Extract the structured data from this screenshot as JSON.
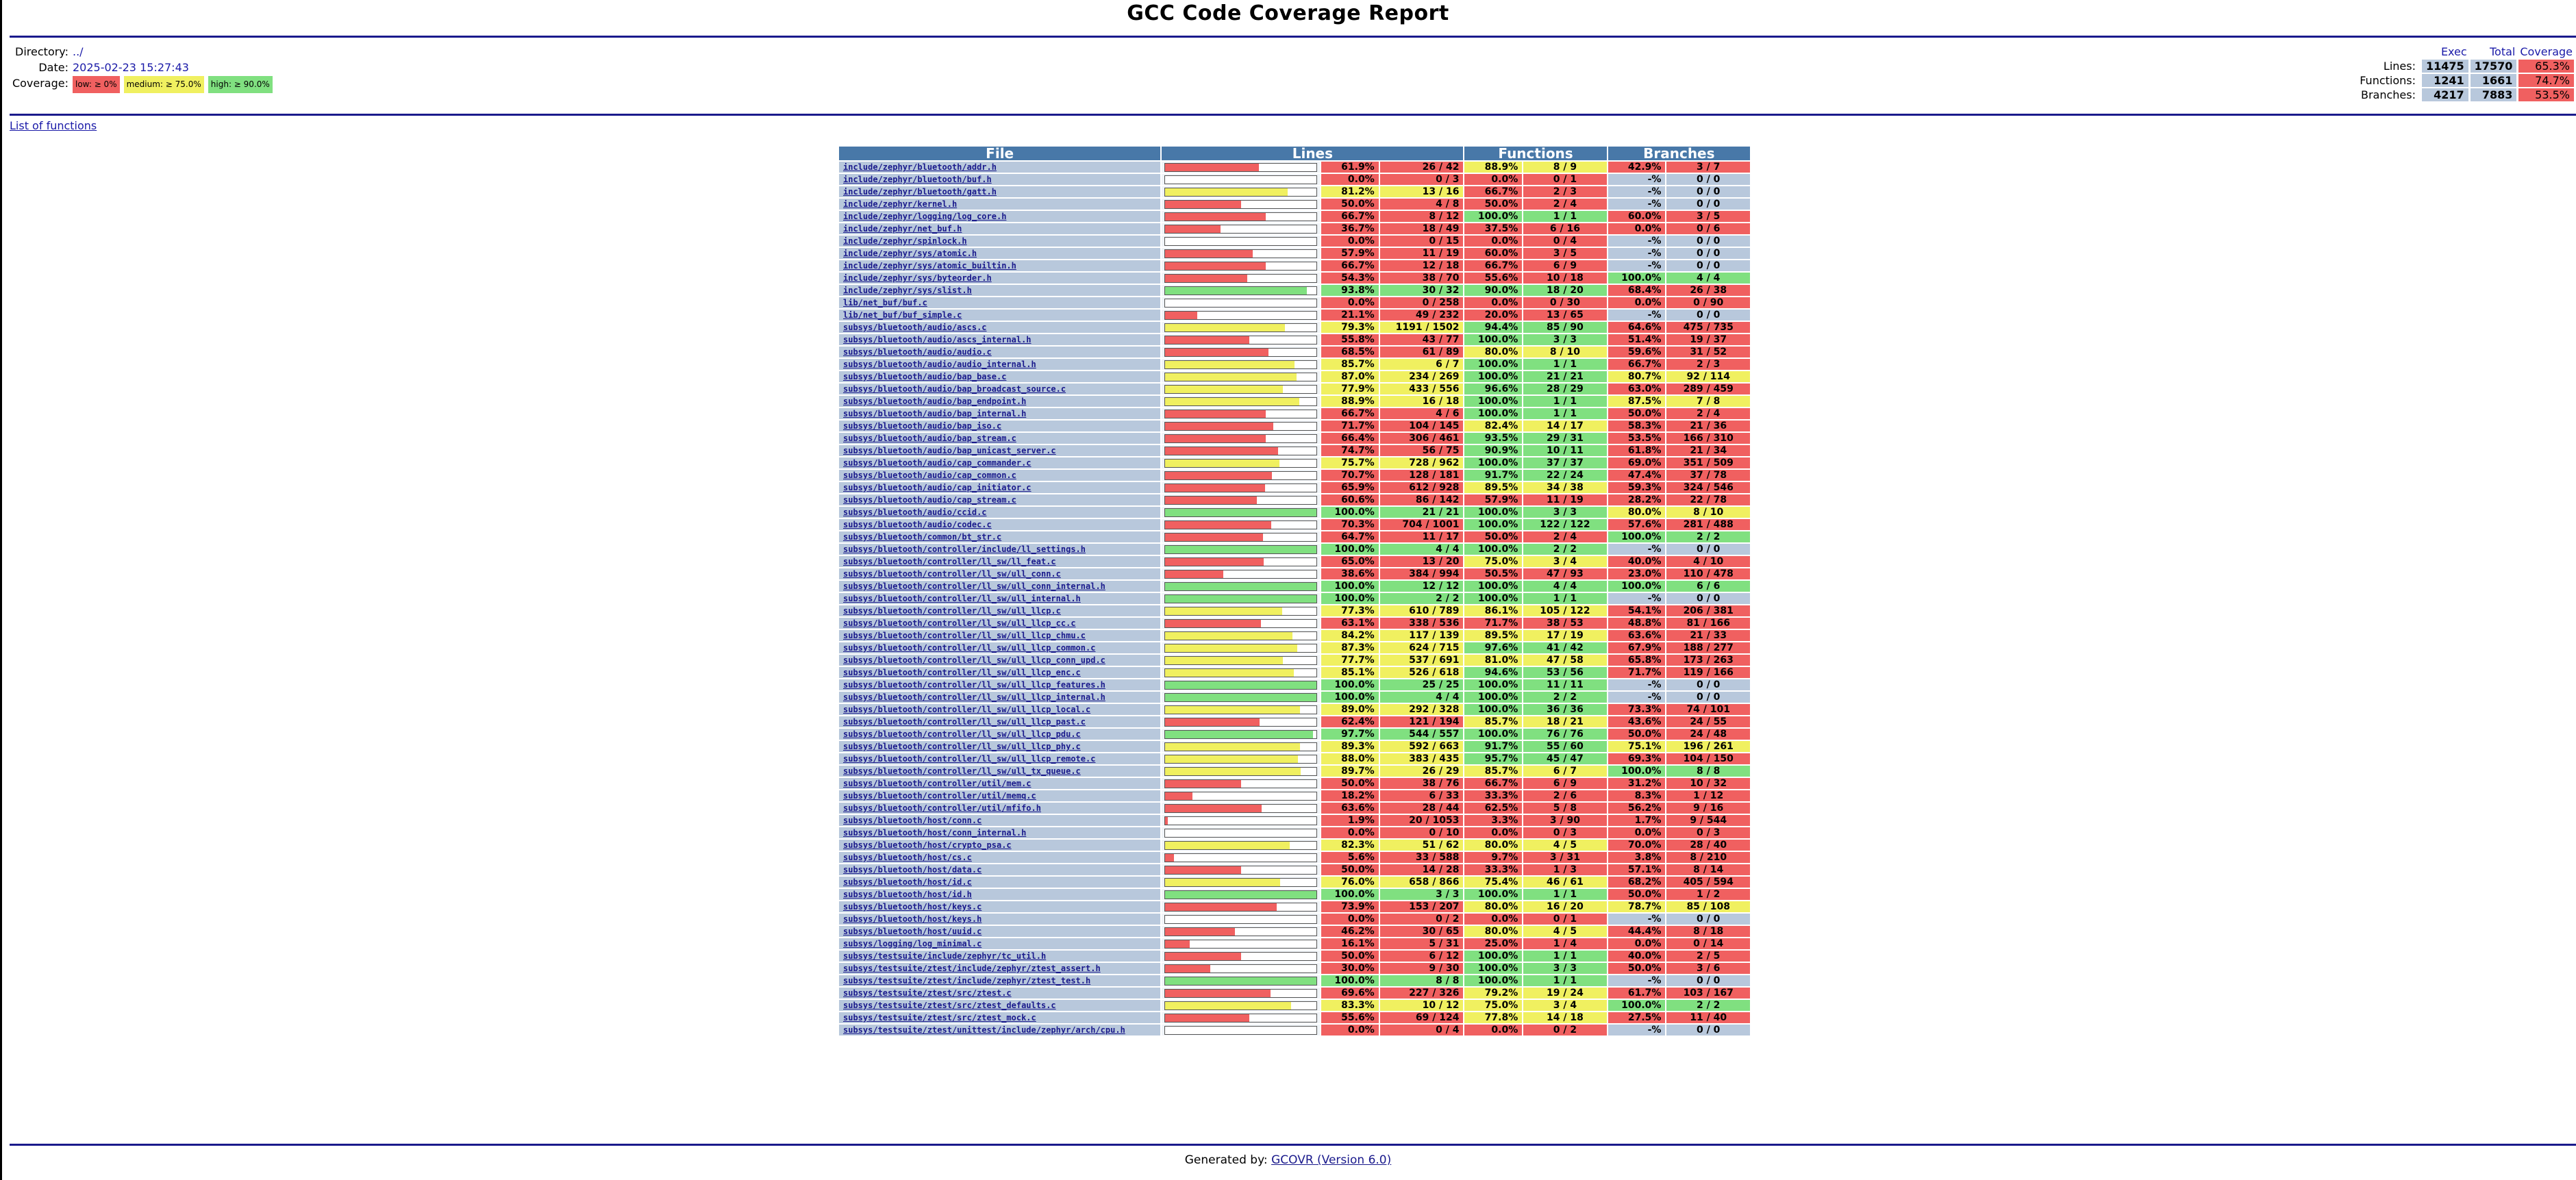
{
  "header": {
    "title": "GCC Code Coverage Report",
    "directory_label": "Directory:",
    "directory": "../",
    "date_label": "Date:",
    "date": "2025-02-23 15:27:43",
    "coverage_label": "Coverage:",
    "legend": [
      {
        "label": "low: ≥ 0%",
        "color": "#f06060"
      },
      {
        "label": "medium: ≥ 75.0%",
        "color": "#f0f060"
      },
      {
        "label": "high: ≥ 90.0%",
        "color": "#80e080"
      }
    ]
  },
  "summary": {
    "headers": [
      "Exec",
      "Total",
      "Coverage"
    ],
    "rows": [
      {
        "label": "Lines:",
        "exec": "11475",
        "total": "17570",
        "coverage": "65.3%",
        "level": "low"
      },
      {
        "label": "Functions:",
        "exec": "1241",
        "total": "1661",
        "coverage": "74.7%",
        "level": "low"
      },
      {
        "label": "Branches:",
        "exec": "4217",
        "total": "7883",
        "coverage": "53.5%",
        "level": "low"
      }
    ]
  },
  "list_of_functions": "List of functions",
  "table": {
    "headers": {
      "file": "File",
      "lines": "Lines",
      "functions": "Functions",
      "branches": "Branches"
    },
    "rows": [
      [
        "include/zephyr/bluetooth/addr.h",
        61.9,
        "61.9%",
        "26 / 42",
        "88.9%",
        "8 / 9",
        "42.9%",
        "3 / 7"
      ],
      [
        "include/zephyr/bluetooth/buf.h",
        0.0,
        "0.0%",
        "0 / 3",
        "0.0%",
        "0 / 1",
        "-%",
        "0 / 0"
      ],
      [
        "include/zephyr/bluetooth/gatt.h",
        81.2,
        "81.2%",
        "13 / 16",
        "66.7%",
        "2 / 3",
        "-%",
        "0 / 0"
      ],
      [
        "include/zephyr/kernel.h",
        50.0,
        "50.0%",
        "4 / 8",
        "50.0%",
        "2 / 4",
        "-%",
        "0 / 0"
      ],
      [
        "include/zephyr/logging/log_core.h",
        66.7,
        "66.7%",
        "8 / 12",
        "100.0%",
        "1 / 1",
        "60.0%",
        "3 / 5"
      ],
      [
        "include/zephyr/net_buf.h",
        36.7,
        "36.7%",
        "18 / 49",
        "37.5%",
        "6 / 16",
        "0.0%",
        "0 / 6"
      ],
      [
        "include/zephyr/spinlock.h",
        0.0,
        "0.0%",
        "0 / 15",
        "0.0%",
        "0 / 4",
        "-%",
        "0 / 0"
      ],
      [
        "include/zephyr/sys/atomic.h",
        57.9,
        "57.9%",
        "11 / 19",
        "60.0%",
        "3 / 5",
        "-%",
        "0 / 0"
      ],
      [
        "include/zephyr/sys/atomic_builtin.h",
        66.7,
        "66.7%",
        "12 / 18",
        "66.7%",
        "6 / 9",
        "-%",
        "0 / 0"
      ],
      [
        "include/zephyr/sys/byteorder.h",
        54.3,
        "54.3%",
        "38 / 70",
        "55.6%",
        "10 / 18",
        "100.0%",
        "4 / 4"
      ],
      [
        "include/zephyr/sys/slist.h",
        93.8,
        "93.8%",
        "30 / 32",
        "90.0%",
        "18 / 20",
        "68.4%",
        "26 / 38"
      ],
      [
        "lib/net_buf/buf.c",
        0.0,
        "0.0%",
        "0 / 258",
        "0.0%",
        "0 / 30",
        "0.0%",
        "0 / 90"
      ],
      [
        "lib/net_buf/buf_simple.c",
        21.1,
        "21.1%",
        "49 / 232",
        "20.0%",
        "13 / 65",
        "-%",
        "0 / 0"
      ],
      [
        "subsys/bluetooth/audio/ascs.c",
        79.3,
        "79.3%",
        "1191 / 1502",
        "94.4%",
        "85 / 90",
        "64.6%",
        "475 / 735"
      ],
      [
        "subsys/bluetooth/audio/ascs_internal.h",
        55.8,
        "55.8%",
        "43 / 77",
        "100.0%",
        "3 / 3",
        "51.4%",
        "19 / 37"
      ],
      [
        "subsys/bluetooth/audio/audio.c",
        68.5,
        "68.5%",
        "61 / 89",
        "80.0%",
        "8 / 10",
        "59.6%",
        "31 / 52"
      ],
      [
        "subsys/bluetooth/audio/audio_internal.h",
        85.7,
        "85.7%",
        "6 / 7",
        "100.0%",
        "1 / 1",
        "66.7%",
        "2 / 3"
      ],
      [
        "subsys/bluetooth/audio/bap_base.c",
        87.0,
        "87.0%",
        "234 / 269",
        "100.0%",
        "21 / 21",
        "80.7%",
        "92 / 114"
      ],
      [
        "subsys/bluetooth/audio/bap_broadcast_source.c",
        77.9,
        "77.9%",
        "433 / 556",
        "96.6%",
        "28 / 29",
        "63.0%",
        "289 / 459"
      ],
      [
        "subsys/bluetooth/audio/bap_endpoint.h",
        88.9,
        "88.9%",
        "16 / 18",
        "100.0%",
        "1 / 1",
        "87.5%",
        "7 / 8"
      ],
      [
        "subsys/bluetooth/audio/bap_internal.h",
        66.7,
        "66.7%",
        "4 / 6",
        "100.0%",
        "1 / 1",
        "50.0%",
        "2 / 4"
      ],
      [
        "subsys/bluetooth/audio/bap_iso.c",
        71.7,
        "71.7%",
        "104 / 145",
        "82.4%",
        "14 / 17",
        "58.3%",
        "21 / 36"
      ],
      [
        "subsys/bluetooth/audio/bap_stream.c",
        66.4,
        "66.4%",
        "306 / 461",
        "93.5%",
        "29 / 31",
        "53.5%",
        "166 / 310"
      ],
      [
        "subsys/bluetooth/audio/bap_unicast_server.c",
        74.7,
        "74.7%",
        "56 / 75",
        "90.9%",
        "10 / 11",
        "61.8%",
        "21 / 34"
      ],
      [
        "subsys/bluetooth/audio/cap_commander.c",
        75.7,
        "75.7%",
        "728 / 962",
        "100.0%",
        "37 / 37",
        "69.0%",
        "351 / 509"
      ],
      [
        "subsys/bluetooth/audio/cap_common.c",
        70.7,
        "70.7%",
        "128 / 181",
        "91.7%",
        "22 / 24",
        "47.4%",
        "37 / 78"
      ],
      [
        "subsys/bluetooth/audio/cap_initiator.c",
        65.9,
        "65.9%",
        "612 / 928",
        "89.5%",
        "34 / 38",
        "59.3%",
        "324 / 546"
      ],
      [
        "subsys/bluetooth/audio/cap_stream.c",
        60.6,
        "60.6%",
        "86 / 142",
        "57.9%",
        "11 / 19",
        "28.2%",
        "22 / 78"
      ],
      [
        "subsys/bluetooth/audio/ccid.c",
        100.0,
        "100.0%",
        "21 / 21",
        "100.0%",
        "3 / 3",
        "80.0%",
        "8 / 10"
      ],
      [
        "subsys/bluetooth/audio/codec.c",
        70.3,
        "70.3%",
        "704 / 1001",
        "100.0%",
        "122 / 122",
        "57.6%",
        "281 / 488"
      ],
      [
        "subsys/bluetooth/common/bt_str.c",
        64.7,
        "64.7%",
        "11 / 17",
        "50.0%",
        "2 / 4",
        "100.0%",
        "2 / 2"
      ],
      [
        "subsys/bluetooth/controller/include/ll_settings.h",
        100.0,
        "100.0%",
        "4 / 4",
        "100.0%",
        "2 / 2",
        "-%",
        "0 / 0"
      ],
      [
        "subsys/bluetooth/controller/ll_sw/ll_feat.c",
        65.0,
        "65.0%",
        "13 / 20",
        "75.0%",
        "3 / 4",
        "40.0%",
        "4 / 10"
      ],
      [
        "subsys/bluetooth/controller/ll_sw/ull_conn.c",
        38.6,
        "38.6%",
        "384 / 994",
        "50.5%",
        "47 / 93",
        "23.0%",
        "110 / 478"
      ],
      [
        "subsys/bluetooth/controller/ll_sw/ull_conn_internal.h",
        100.0,
        "100.0%",
        "12 / 12",
        "100.0%",
        "4 / 4",
        "100.0%",
        "6 / 6"
      ],
      [
        "subsys/bluetooth/controller/ll_sw/ull_internal.h",
        100.0,
        "100.0%",
        "2 / 2",
        "100.0%",
        "1 / 1",
        "-%",
        "0 / 0"
      ],
      [
        "subsys/bluetooth/controller/ll_sw/ull_llcp.c",
        77.3,
        "77.3%",
        "610 / 789",
        "86.1%",
        "105 / 122",
        "54.1%",
        "206 / 381"
      ],
      [
        "subsys/bluetooth/controller/ll_sw/ull_llcp_cc.c",
        63.1,
        "63.1%",
        "338 / 536",
        "71.7%",
        "38 / 53",
        "48.8%",
        "81 / 166"
      ],
      [
        "subsys/bluetooth/controller/ll_sw/ull_llcp_chmu.c",
        84.2,
        "84.2%",
        "117 / 139",
        "89.5%",
        "17 / 19",
        "63.6%",
        "21 / 33"
      ],
      [
        "subsys/bluetooth/controller/ll_sw/ull_llcp_common.c",
        87.3,
        "87.3%",
        "624 / 715",
        "97.6%",
        "41 / 42",
        "67.9%",
        "188 / 277"
      ],
      [
        "subsys/bluetooth/controller/ll_sw/ull_llcp_conn_upd.c",
        77.7,
        "77.7%",
        "537 / 691",
        "81.0%",
        "47 / 58",
        "65.8%",
        "173 / 263"
      ],
      [
        "subsys/bluetooth/controller/ll_sw/ull_llcp_enc.c",
        85.1,
        "85.1%",
        "526 / 618",
        "94.6%",
        "53 / 56",
        "71.7%",
        "119 / 166"
      ],
      [
        "subsys/bluetooth/controller/ll_sw/ull_llcp_features.h",
        100.0,
        "100.0%",
        "25 / 25",
        "100.0%",
        "11 / 11",
        "-%",
        "0 / 0"
      ],
      [
        "subsys/bluetooth/controller/ll_sw/ull_llcp_internal.h",
        100.0,
        "100.0%",
        "4 / 4",
        "100.0%",
        "2 / 2",
        "-%",
        "0 / 0"
      ],
      [
        "subsys/bluetooth/controller/ll_sw/ull_llcp_local.c",
        89.0,
        "89.0%",
        "292 / 328",
        "100.0%",
        "36 / 36",
        "73.3%",
        "74 / 101"
      ],
      [
        "subsys/bluetooth/controller/ll_sw/ull_llcp_past.c",
        62.4,
        "62.4%",
        "121 / 194",
        "85.7%",
        "18 / 21",
        "43.6%",
        "24 / 55"
      ],
      [
        "subsys/bluetooth/controller/ll_sw/ull_llcp_pdu.c",
        97.7,
        "97.7%",
        "544 / 557",
        "100.0%",
        "76 / 76",
        "50.0%",
        "24 / 48"
      ],
      [
        "subsys/bluetooth/controller/ll_sw/ull_llcp_phy.c",
        89.3,
        "89.3%",
        "592 / 663",
        "91.7%",
        "55 / 60",
        "75.1%",
        "196 / 261"
      ],
      [
        "subsys/bluetooth/controller/ll_sw/ull_llcp_remote.c",
        88.0,
        "88.0%",
        "383 / 435",
        "95.7%",
        "45 / 47",
        "69.3%",
        "104 / 150"
      ],
      [
        "subsys/bluetooth/controller/ll_sw/ull_tx_queue.c",
        89.7,
        "89.7%",
        "26 / 29",
        "85.7%",
        "6 / 7",
        "100.0%",
        "8 / 8"
      ],
      [
        "subsys/bluetooth/controller/util/mem.c",
        50.0,
        "50.0%",
        "38 / 76",
        "66.7%",
        "6 / 9",
        "31.2%",
        "10 / 32"
      ],
      [
        "subsys/bluetooth/controller/util/memq.c",
        18.2,
        "18.2%",
        "6 / 33",
        "33.3%",
        "2 / 6",
        "8.3%",
        "1 / 12"
      ],
      [
        "subsys/bluetooth/controller/util/mfifo.h",
        63.6,
        "63.6%",
        "28 / 44",
        "62.5%",
        "5 / 8",
        "56.2%",
        "9 / 16"
      ],
      [
        "subsys/bluetooth/host/conn.c",
        1.9,
        "1.9%",
        "20 / 1053",
        "3.3%",
        "3 / 90",
        "1.7%",
        "9 / 544"
      ],
      [
        "subsys/bluetooth/host/conn_internal.h",
        0.0,
        "0.0%",
        "0 / 10",
        "0.0%",
        "0 / 3",
        "0.0%",
        "0 / 3"
      ],
      [
        "subsys/bluetooth/host/crypto_psa.c",
        82.3,
        "82.3%",
        "51 / 62",
        "80.0%",
        "4 / 5",
        "70.0%",
        "28 / 40"
      ],
      [
        "subsys/bluetooth/host/cs.c",
        5.6,
        "5.6%",
        "33 / 588",
        "9.7%",
        "3 / 31",
        "3.8%",
        "8 / 210"
      ],
      [
        "subsys/bluetooth/host/data.c",
        50.0,
        "50.0%",
        "14 / 28",
        "33.3%",
        "1 / 3",
        "57.1%",
        "8 / 14"
      ],
      [
        "subsys/bluetooth/host/id.c",
        76.0,
        "76.0%",
        "658 / 866",
        "75.4%",
        "46 / 61",
        "68.2%",
        "405 / 594"
      ],
      [
        "subsys/bluetooth/host/id.h",
        100.0,
        "100.0%",
        "3 / 3",
        "100.0%",
        "1 / 1",
        "50.0%",
        "1 / 2"
      ],
      [
        "subsys/bluetooth/host/keys.c",
        73.9,
        "73.9%",
        "153 / 207",
        "80.0%",
        "16 / 20",
        "78.7%",
        "85 / 108"
      ],
      [
        "subsys/bluetooth/host/keys.h",
        0.0,
        "0.0%",
        "0 / 2",
        "0.0%",
        "0 / 1",
        "-%",
        "0 / 0"
      ],
      [
        "subsys/bluetooth/host/uuid.c",
        46.2,
        "46.2%",
        "30 / 65",
        "80.0%",
        "4 / 5",
        "44.4%",
        "8 / 18"
      ],
      [
        "subsys/logging/log_minimal.c",
        16.1,
        "16.1%",
        "5 / 31",
        "25.0%",
        "1 / 4",
        "0.0%",
        "0 / 14"
      ],
      [
        "subsys/testsuite/include/zephyr/tc_util.h",
        50.0,
        "50.0%",
        "6 / 12",
        "100.0%",
        "1 / 1",
        "40.0%",
        "2 / 5"
      ],
      [
        "subsys/testsuite/ztest/include/zephyr/ztest_assert.h",
        30.0,
        "30.0%",
        "9 / 30",
        "100.0%",
        "3 / 3",
        "50.0%",
        "3 / 6"
      ],
      [
        "subsys/testsuite/ztest/include/zephyr/ztest_test.h",
        100.0,
        "100.0%",
        "8 / 8",
        "100.0%",
        "1 / 1",
        "-%",
        "0 / 0"
      ],
      [
        "subsys/testsuite/ztest/src/ztest.c",
        69.6,
        "69.6%",
        "227 / 326",
        "79.2%",
        "19 / 24",
        "61.7%",
        "103 / 167"
      ],
      [
        "subsys/testsuite/ztest/src/ztest_defaults.c",
        83.3,
        "83.3%",
        "10 / 12",
        "75.0%",
        "3 / 4",
        "100.0%",
        "2 / 2"
      ],
      [
        "subsys/testsuite/ztest/src/ztest_mock.c",
        55.6,
        "55.6%",
        "69 / 124",
        "77.8%",
        "14 / 18",
        "27.5%",
        "11 / 40"
      ],
      [
        "subsys/testsuite/ztest/unittest/include/zephyr/arch/cpu.h",
        0.0,
        "0.0%",
        "0 / 4",
        "0.0%",
        "0 / 2",
        "-%",
        "0 / 0"
      ]
    ]
  },
  "footer": {
    "prefix": "Generated by: ",
    "link": "GCOVR (Version 6.0)"
  },
  "colors": {
    "low": "#f06060",
    "medium": "#f0f060",
    "high": "#80e080",
    "none": "#b8c8dc",
    "header": "#4878a8"
  }
}
